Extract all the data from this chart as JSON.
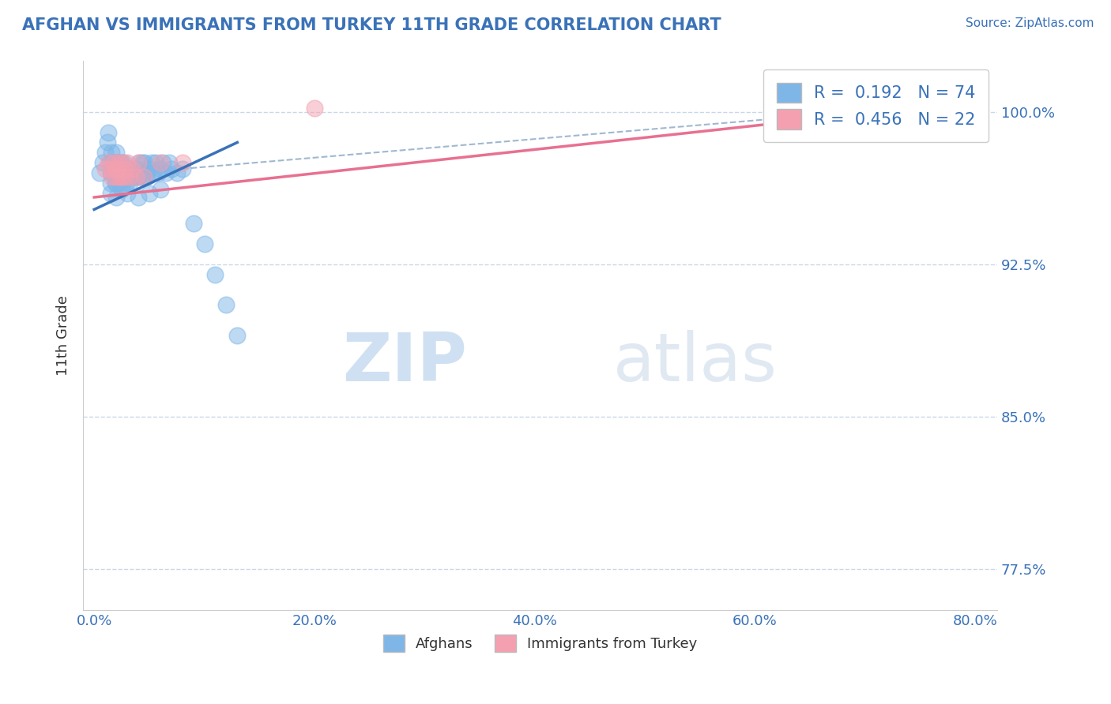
{
  "title": "AFGHAN VS IMMIGRANTS FROM TURKEY 11TH GRADE CORRELATION CHART",
  "source_text": "Source: ZipAtlas.com",
  "ylabel": "11th Grade",
  "x_tick_labels": [
    "0.0%",
    "20.0%",
    "40.0%",
    "60.0%",
    "80.0%"
  ],
  "y_tick_labels_right": [
    "100.0%",
    "92.5%",
    "85.0%",
    "77.5%"
  ],
  "x_ticks": [
    0.0,
    0.2,
    0.4,
    0.6,
    0.8
  ],
  "y_ticks": [
    1.0,
    0.925,
    0.85,
    0.775
  ],
  "xlim": [
    -0.01,
    0.82
  ],
  "ylim": [
    0.755,
    1.025
  ],
  "afghan_R": "0.192",
  "afghan_N": "74",
  "turkey_R": "0.456",
  "turkey_N": "22",
  "legend_labels": [
    "Afghans",
    "Immigrants from Turkey"
  ],
  "afghan_color": "#7eb6e8",
  "turkey_color": "#f4a0b0",
  "afghan_line_color": "#3a72b8",
  "turkey_line_color": "#e87090",
  "dashed_line_color": "#a0b8d0",
  "watermark_zip": "ZIP",
  "watermark_atlas": "atlas",
  "background_color": "#ffffff",
  "grid_color": "#c8d8e8",
  "title_color": "#3a72b8",
  "source_color": "#3a72b8",
  "legend_R_N_color": "#3a72b8",
  "tick_label_color": "#3a72b8",
  "ylabel_color": "#333333",
  "afghan_scatter_x": [
    0.005,
    0.008,
    0.01,
    0.012,
    0.013,
    0.014,
    0.015,
    0.015,
    0.016,
    0.017,
    0.018,
    0.019,
    0.02,
    0.02,
    0.02,
    0.02,
    0.021,
    0.022,
    0.022,
    0.023,
    0.023,
    0.024,
    0.024,
    0.025,
    0.025,
    0.026,
    0.027,
    0.027,
    0.028,
    0.029,
    0.03,
    0.03,
    0.031,
    0.032,
    0.033,
    0.034,
    0.035,
    0.036,
    0.037,
    0.038,
    0.039,
    0.04,
    0.041,
    0.042,
    0.043,
    0.044,
    0.045,
    0.046,
    0.047,
    0.048,
    0.05,
    0.052,
    0.054,
    0.056,
    0.058,
    0.06,
    0.062,
    0.065,
    0.068,
    0.07,
    0.075,
    0.08,
    0.09,
    0.1,
    0.11,
    0.12,
    0.13,
    0.015,
    0.02,
    0.025,
    0.03,
    0.04,
    0.05,
    0.06
  ],
  "afghan_scatter_y": [
    0.97,
    0.975,
    0.98,
    0.985,
    0.99,
    0.975,
    0.97,
    0.965,
    0.98,
    0.975,
    0.97,
    0.965,
    0.975,
    0.97,
    0.965,
    0.98,
    0.975,
    0.97,
    0.975,
    0.97,
    0.965,
    0.975,
    0.97,
    0.975,
    0.968,
    0.972,
    0.968,
    0.975,
    0.97,
    0.965,
    0.972,
    0.968,
    0.97,
    0.965,
    0.97,
    0.968,
    0.972,
    0.968,
    0.97,
    0.968,
    0.972,
    0.968,
    0.975,
    0.97,
    0.968,
    0.975,
    0.968,
    0.975,
    0.97,
    0.968,
    0.972,
    0.975,
    0.97,
    0.975,
    0.97,
    0.972,
    0.975,
    0.97,
    0.975,
    0.972,
    0.97,
    0.972,
    0.945,
    0.935,
    0.92,
    0.905,
    0.89,
    0.96,
    0.958,
    0.962,
    0.96,
    0.958,
    0.96,
    0.962
  ],
  "turkey_scatter_x": [
    0.01,
    0.013,
    0.015,
    0.016,
    0.018,
    0.02,
    0.02,
    0.022,
    0.023,
    0.025,
    0.025,
    0.027,
    0.028,
    0.03,
    0.032,
    0.034,
    0.038,
    0.04,
    0.045,
    0.06,
    0.08,
    0.2
  ],
  "turkey_scatter_y": [
    0.972,
    0.975,
    0.972,
    0.968,
    0.975,
    0.972,
    0.968,
    0.975,
    0.968,
    0.975,
    0.968,
    0.972,
    0.968,
    0.975,
    0.968,
    0.972,
    0.968,
    0.975,
    0.968,
    0.975,
    0.975,
    1.002
  ],
  "afghan_trend_x": [
    0.0,
    0.13
  ],
  "afghan_trend_y": [
    0.952,
    0.985
  ],
  "turkey_trend_x": [
    0.0,
    0.8
  ],
  "turkey_trend_y": [
    0.958,
    1.005
  ],
  "dashed_trend_x": [
    0.08,
    0.8
  ],
  "dashed_trend_y": [
    0.972,
    1.005
  ]
}
